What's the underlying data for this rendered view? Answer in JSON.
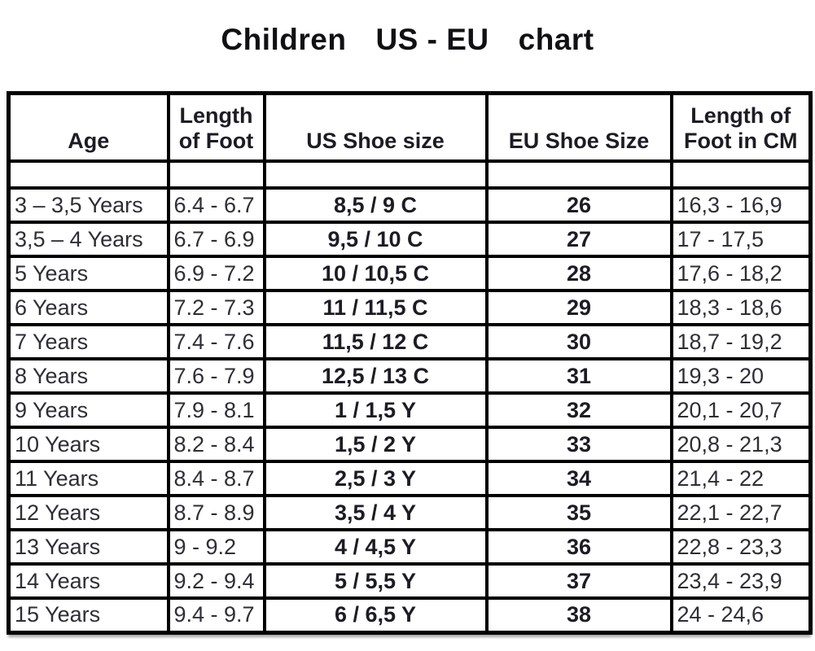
{
  "title": {
    "text": "Children US - EU chart",
    "part1": "Children",
    "part2": "US - EU",
    "part3": "chart"
  },
  "colors": {
    "background": "#ffffff",
    "border": "#000000",
    "text": "#2e2e36",
    "bold_text": "#1c1c24"
  },
  "chart_data": {
    "type": "table",
    "title": "Children US - EU chart",
    "columns": [
      "Age",
      "Length of Foot",
      "US Shoe size",
      "EU Shoe Size",
      "Length of Foot in CM"
    ],
    "header_lines": [
      [
        "Age"
      ],
      [
        "Length",
        "of Foot"
      ],
      [
        "US Shoe size"
      ],
      [
        "EU Shoe Size"
      ],
      [
        "Length of",
        "Foot in CM"
      ]
    ],
    "rows": [
      [
        "3 – 3,5 Years",
        "6.4 - 6.7",
        "8,5 / 9 C",
        "26",
        "16,3 - 16,9"
      ],
      [
        "3,5 – 4 Years",
        "6.7 - 6.9",
        "9,5 / 10 C",
        "27",
        "17 - 17,5"
      ],
      [
        "5 Years",
        "6.9 - 7.2",
        "10 / 10,5 C",
        "28",
        "17,6 - 18,2"
      ],
      [
        "6 Years",
        "7.2 - 7.3",
        "11 / 11,5 C",
        "29",
        "18,3 - 18,6"
      ],
      [
        "7 Years",
        "7.4 - 7.6",
        "11,5 / 12 C",
        "30",
        "18,7 - 19,2"
      ],
      [
        "8 Years",
        "7.6 - 7.9",
        "12,5 / 13 C",
        "31",
        "19,3 - 20"
      ],
      [
        "9 Years",
        "7.9 - 8.1",
        "1 / 1,5 Y",
        "32",
        "20,1 - 20,7"
      ],
      [
        "10 Years",
        "8.2 - 8.4",
        "1,5 / 2 Y",
        "33",
        "20,8 - 21,3"
      ],
      [
        "11 Years",
        "8.4 - 8.7",
        "2,5 / 3 Y",
        "34",
        "21,4 - 22"
      ],
      [
        "12 Years",
        "8.7 - 8.9",
        "3,5 / 4 Y",
        "35",
        "22,1 - 22,7"
      ],
      [
        "13 Years",
        "9 - 9.2",
        "4 / 4,5 Y",
        "36",
        "22,8 - 23,3"
      ],
      [
        "14 Years",
        "9.2 - 9.4",
        "5 / 5,5 Y",
        "37",
        "23,4 - 23,9"
      ],
      [
        "15 Years",
        "9.4 - 9.7",
        "6 / 6,5 Y",
        "38",
        "24 - 24,6"
      ]
    ]
  }
}
